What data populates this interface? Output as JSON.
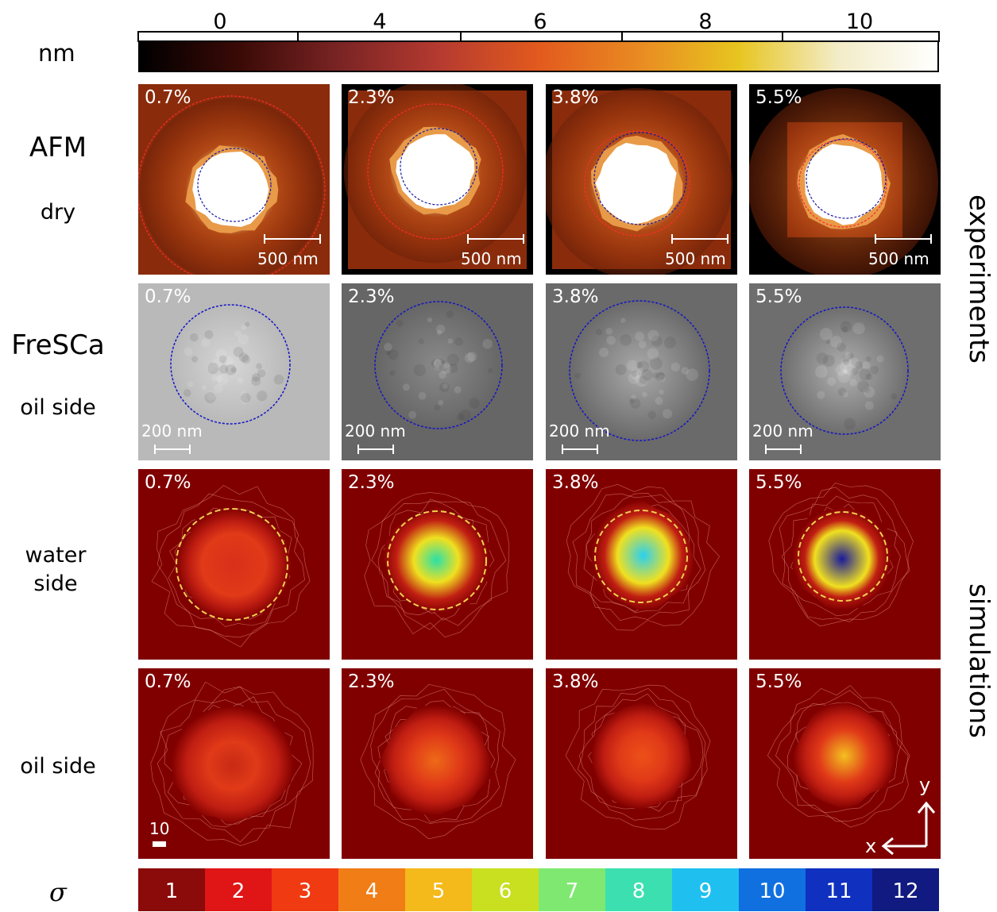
{
  "colorbar_top": {
    "unit": "nm",
    "ticks": [
      "0",
      "4",
      "6",
      "8",
      "10"
    ],
    "colors": [
      "#000000",
      "#3a0a06",
      "#7a2424",
      "#b53a30",
      "#e25a1e",
      "#e98a22",
      "#e7c51f",
      "#f3ecc8",
      "#ffffff"
    ]
  },
  "colorbar_bottom": {
    "symbol": "σ",
    "ticks": [
      "1",
      "2",
      "3",
      "4",
      "5",
      "6",
      "7",
      "8",
      "9",
      "10",
      "11",
      "12"
    ],
    "colors": [
      "#8b0a0a",
      "#e01515",
      "#f03a12",
      "#f07d16",
      "#f4b91a",
      "#c8e020",
      "#7fe870",
      "#3ce0b0",
      "#1fc0f0",
      "#1070e0",
      "#1030c0",
      "#101a80"
    ]
  },
  "concentrations": [
    "0.7%",
    "2.3%",
    "3.8%",
    "5.5%"
  ],
  "rows": {
    "afm": {
      "title": "AFM",
      "subtitle": "dry",
      "scale": "500 nm"
    },
    "fresca": {
      "title": "FreSCa",
      "subtitle": "oil side",
      "scale": "200 nm"
    },
    "water": {
      "label": "water side"
    },
    "oil": {
      "label": "oil side",
      "scale": "10"
    }
  },
  "side": {
    "experiments": "experiments",
    "simulations": "simulations"
  },
  "axes": {
    "x": "x",
    "y": "y"
  }
}
